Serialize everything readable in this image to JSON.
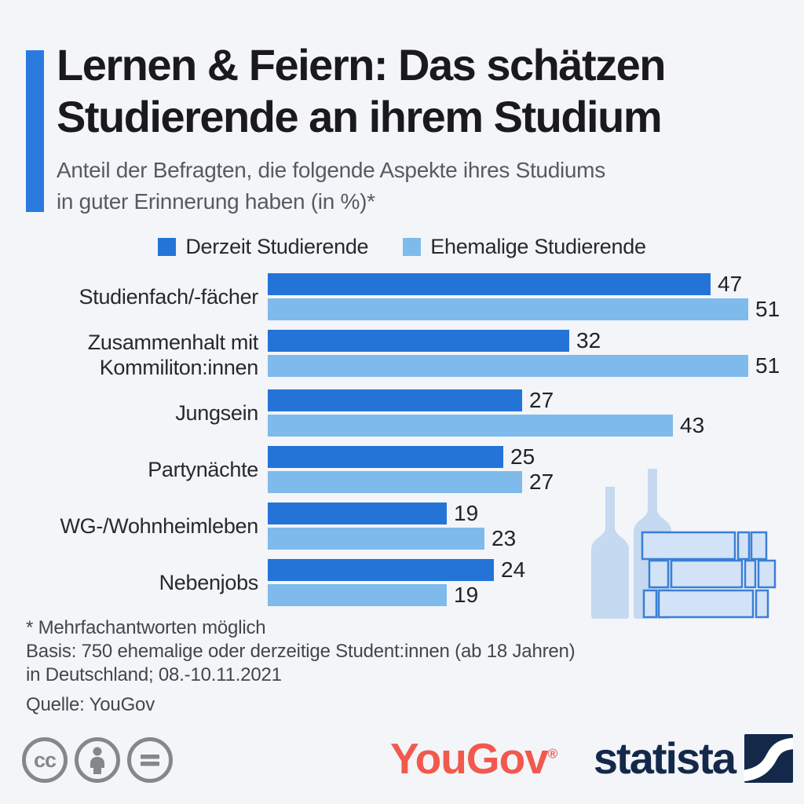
{
  "title": "Lernen & Feiern: Das schätzen\nStudierende an ihrem Studium",
  "subtitle": "Anteil der Befragten, die folgende Aspekte ihres Studiums\nin guter Erinnerung haben (in %)*",
  "legend": [
    {
      "label": "Derzeit Studierende",
      "color": "#2474d8"
    },
    {
      "label": "Ehemalige Studierende",
      "color": "#7fbaec"
    }
  ],
  "chart_data": {
    "type": "bar",
    "orientation": "horizontal",
    "title": "Lernen & Feiern: Das schätzen Studierende an ihrem Studium",
    "subtitle": "Anteil der Befragten, die folgende Aspekte ihres Studiums in guter Erinnerung haben (in %)*",
    "categories": [
      "Studienfach/-fächer",
      "Zusammenhalt mit\nKommiliton:innen",
      "Jungsein",
      "Partynächte",
      "WG-/Wohnheimleben",
      "Nebenjobs"
    ],
    "series": [
      {
        "name": "Derzeit Studierende",
        "color": "#2474d8",
        "values": [
          47,
          32,
          27,
          25,
          19,
          24
        ]
      },
      {
        "name": "Ehemalige Studierende",
        "color": "#7fbaec",
        "values": [
          51,
          51,
          43,
          27,
          23,
          19
        ]
      }
    ],
    "xlim": [
      0,
      51
    ],
    "value_labels": true,
    "grid": false,
    "legend_position": "top"
  },
  "footnotes": [
    "* Mehrfachantworten möglich",
    "Basis: 750 ehemalige oder derzeitige Student:innen (ab 18 Jahren)",
    "in Deutschland; 08.-10.11.2021"
  ],
  "source": "Quelle: YouGov",
  "branding": {
    "yougov": "YouGov",
    "registered": "®",
    "statista": "statista",
    "cc_badge": "cc"
  },
  "colors": {
    "background": "#f3f5f8",
    "accent_bar": "#2b7ae0",
    "title": "#1a1a1c",
    "subtitle": "#565b62",
    "text": "#26292d",
    "footnote": "#42474c",
    "bar_current": "#2474d8",
    "bar_former": "#7fbaec",
    "yougov_red": "#f2594e",
    "statista_navy": "#14294a",
    "cc_gray": "#85888b",
    "illustration_bottle": "#c5d9f0",
    "illustration_book_fill": "#d3e3f7",
    "illustration_book_stroke": "#3a7fd6"
  }
}
